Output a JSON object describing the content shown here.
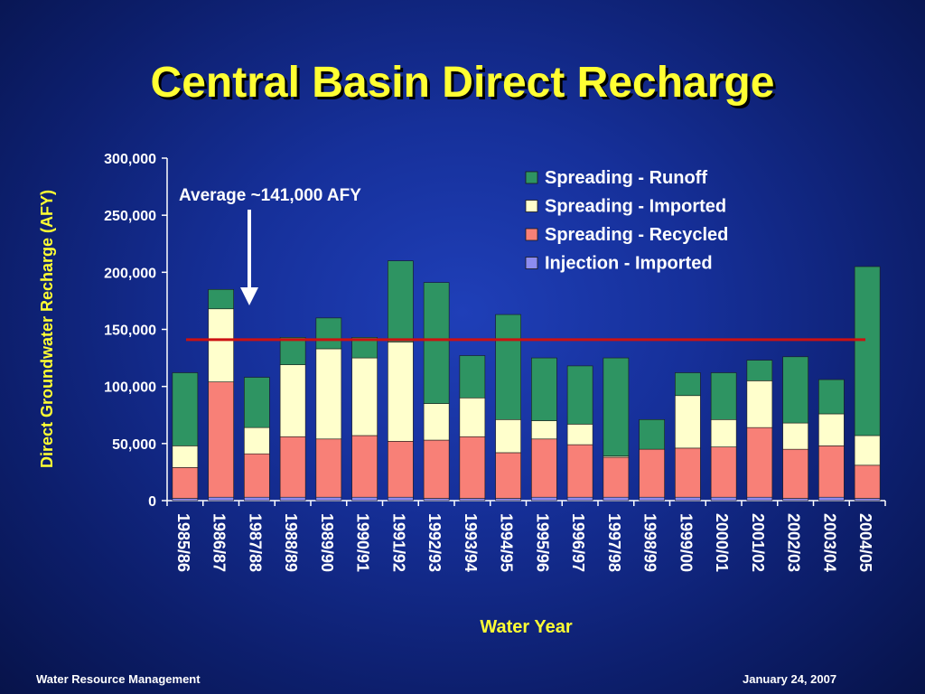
{
  "title": "Central Basin Direct Recharge",
  "footer": {
    "left": "Water Resource Management",
    "right": "January 24, 2007"
  },
  "colors": {
    "runoff": "#2e9462",
    "imported": "#ffffcc",
    "recycled": "#f88077",
    "injection": "#8c8cf0",
    "average_line": "#cc1111",
    "axis_text": "#ffffff",
    "xlabel_text": "#ffff33"
  },
  "chart_data": {
    "type": "bar",
    "stacked": true,
    "xlabel": "Water Year",
    "ylabel": "Direct Groundwater Recharge (AFY)",
    "ylim": [
      0,
      300000
    ],
    "yticks": [
      0,
      50000,
      100000,
      150000,
      200000,
      250000,
      300000
    ],
    "ytick_labels": [
      "0",
      "50,000",
      "100,000",
      "150,000",
      "200,000",
      "250,000",
      "300,000"
    ],
    "legend_position": "top-right",
    "categories": [
      "1985/86",
      "1986/87",
      "1987/88",
      "1988/89",
      "1989/90",
      "1990/91",
      "1991/92",
      "1992/93",
      "1993/94",
      "1994/95",
      "1995/96",
      "1996/97",
      "1997/98",
      "1998/99",
      "1999/00",
      "2000/01",
      "2001/02",
      "2002/03",
      "2003/04",
      "2004/05"
    ],
    "series": [
      {
        "name": "Injection - Imported",
        "values": [
          2000,
          3000,
          3000,
          3000,
          3000,
          3000,
          3000,
          2000,
          2000,
          2000,
          3000,
          3000,
          3000,
          3000,
          3000,
          3000,
          3000,
          2000,
          3000,
          2000
        ]
      },
      {
        "name": "Spreading - Recycled",
        "values": [
          27000,
          101000,
          38000,
          53000,
          51000,
          54000,
          49000,
          51000,
          54000,
          40000,
          51000,
          46000,
          35000,
          42000,
          43000,
          44000,
          61000,
          43000,
          45000,
          29000
        ]
      },
      {
        "name": "Spreading - Imported",
        "values": [
          19000,
          64000,
          23000,
          63000,
          79000,
          68000,
          87000,
          32000,
          34000,
          29000,
          16000,
          18000,
          1000,
          0,
          46000,
          24000,
          41000,
          23000,
          28000,
          26000
        ]
      },
      {
        "name": "Spreading - Runoff",
        "values": [
          64000,
          17000,
          44000,
          24000,
          27000,
          18000,
          71000,
          106000,
          37000,
          92000,
          55000,
          51000,
          86000,
          26000,
          20000,
          41000,
          18000,
          58000,
          30000,
          148000
        ]
      }
    ],
    "legend_order": [
      "Spreading - Runoff",
      "Spreading - Imported",
      "Spreading - Recycled",
      "Injection - Imported"
    ],
    "average": {
      "value": 141000,
      "label": "Average ~141,000 AFY"
    }
  }
}
